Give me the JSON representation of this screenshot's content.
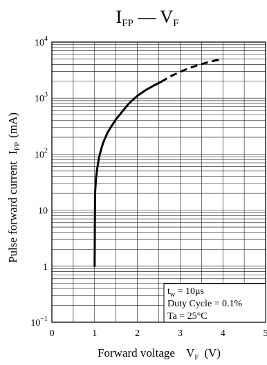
{
  "chart_data": {
    "type": "line",
    "title_main": "I",
    "title_main_sub": "FP",
    "title_sep": " — ",
    "title_second": "V",
    "title_second_sub": "F",
    "xlabel_text": "Forward voltage",
    "xlabel_symbol": "V",
    "xlabel_symbol_sub": "F",
    "xlabel_unit": "(V)",
    "ylabel_text": "Pulse forward current",
    "ylabel_symbol": "I",
    "ylabel_symbol_sub": "FP",
    "ylabel_unit": "(mA)",
    "xlim": [
      0,
      5
    ],
    "ylim": [
      0.1,
      10000
    ],
    "yscale": "log",
    "grid": true,
    "x_ticks": [
      "0",
      "1",
      "2",
      "3",
      "4",
      "5"
    ],
    "y_ticks": [
      {
        "value": 10000,
        "base": "10",
        "exp": "4"
      },
      {
        "value": 1000,
        "base": "10",
        "exp": "3"
      },
      {
        "value": 100,
        "base": "10",
        "exp": "2"
      },
      {
        "value": 10,
        "base": "10",
        "exp": ""
      },
      {
        "value": 1,
        "base": "1",
        "exp": ""
      },
      {
        "value": 0.1,
        "base": "10",
        "exp": "−1"
      }
    ],
    "series": [
      {
        "line_style": "solid",
        "x": [
          1.0,
          1.01,
          1.03,
          1.06,
          1.1,
          1.15,
          1.2,
          1.3,
          1.4,
          1.5,
          1.6,
          1.8,
          2.0,
          2.2,
          2.4,
          2.55
        ],
        "y": [
          1,
          20,
          35,
          55,
          85,
          120,
          160,
          240,
          320,
          420,
          520,
          800,
          1100,
          1400,
          1700,
          1950
        ]
      },
      {
        "line_style": "dashed",
        "x": [
          2.55,
          2.8,
          3.0,
          3.2,
          3.4,
          3.6,
          3.8,
          4.0
        ],
        "y": [
          1950,
          2500,
          2950,
          3400,
          3850,
          4250,
          4650,
          5000
        ]
      }
    ],
    "annotation": {
      "lines": [
        {
          "main": "t",
          "sub": "w",
          "rest": " = 10μs"
        },
        {
          "main": "Duty Cycle = 0.1%",
          "sub": "",
          "rest": ""
        },
        {
          "main": "Ta = 25°C",
          "sub": "",
          "rest": ""
        }
      ]
    }
  }
}
